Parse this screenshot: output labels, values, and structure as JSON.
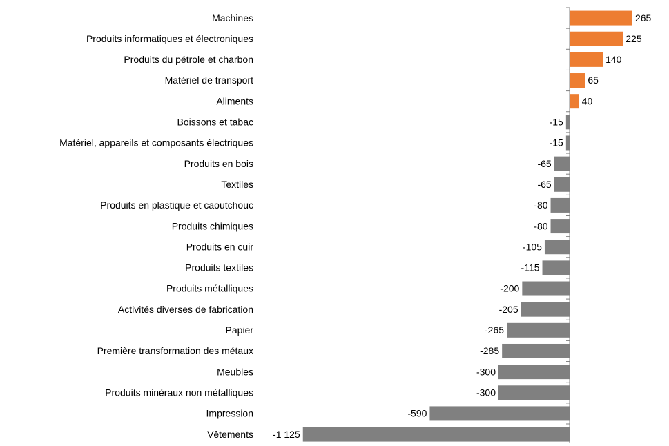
{
  "chart_data": {
    "type": "barh",
    "categories": [
      "Machines",
      "Produits informatiques et électroniques",
      "Produits du pétrole et charbon",
      "Matériel de transport",
      "Aliments",
      "Boissons et tabac",
      "Matériel, appareils et composants électriques",
      "Produits en bois",
      "Textiles",
      "Produits en plastique et caoutchouc",
      "Produits chimiques",
      "Produits en cuir",
      "Produits textiles",
      "Produits métalliques",
      "Activités diverses de fabrication",
      "Papier",
      "Première transformation des métaux",
      "Meubles",
      "Produits minéraux non métalliques",
      "Impression",
      "Vêtements"
    ],
    "values": [
      265,
      225,
      140,
      65,
      40,
      -15,
      -15,
      -65,
      -65,
      -80,
      -80,
      -105,
      -115,
      -200,
      -205,
      -265,
      -285,
      -300,
      -300,
      -590,
      -1125
    ],
    "value_labels": [
      "265",
      "225",
      "140",
      "65",
      "40",
      "-15",
      "-15",
      "-65",
      "-65",
      "-80",
      "-80",
      "-105",
      "-115",
      "-200",
      "-205",
      "-265",
      "-285",
      "-300",
      "-300",
      "-590",
      "-1 125"
    ],
    "colors": [
      "#ed7d31",
      "#ed7d31",
      "#ed7d31",
      "#ed7d31",
      "#ed7d31",
      "#808080",
      "#808080",
      "#808080",
      "#808080",
      "#808080",
      "#808080",
      "#808080",
      "#808080",
      "#808080",
      "#808080",
      "#808080",
      "#808080",
      "#808080",
      "#808080",
      "#808080",
      "#808080"
    ],
    "xlim": [
      -1200,
      300
    ]
  }
}
